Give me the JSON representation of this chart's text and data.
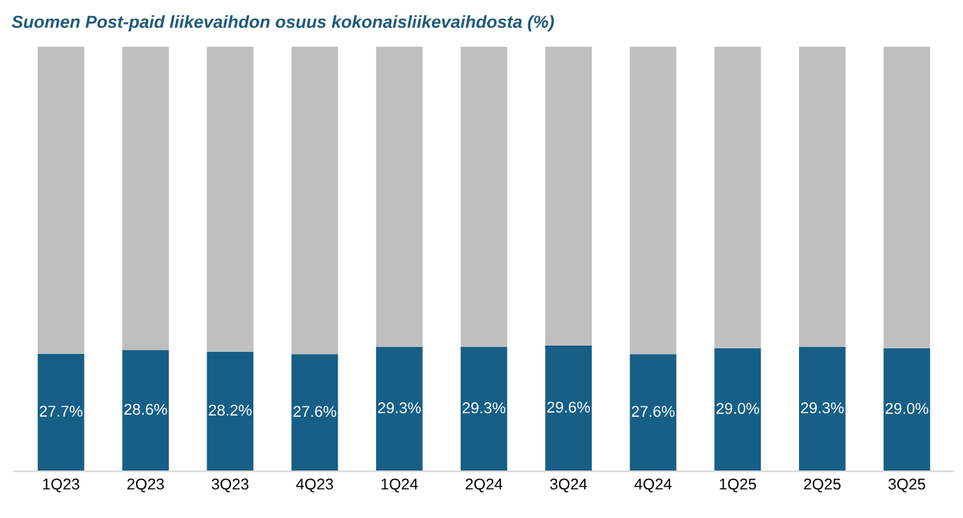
{
  "chart_data": {
    "type": "bar",
    "title": "Suomen Post-paid liikevaihdon osuus kokonaisliikevaihdosta (%)",
    "categories": [
      "1Q23",
      "2Q23",
      "3Q23",
      "4Q23",
      "1Q24",
      "2Q24",
      "3Q24",
      "4Q24",
      "1Q25",
      "2Q25",
      "3Q25"
    ],
    "stacked": true,
    "ylim": [
      0,
      100
    ],
    "tick_labels": "x",
    "grid": false,
    "legend": false,
    "series": [
      {
        "color": "#175f86",
        "values": [
          27.7,
          28.6,
          28.2,
          27.6,
          29.3,
          29.3,
          29.6,
          27.6,
          29.0,
          29.3,
          29.0
        ],
        "value_labels": [
          "27.7%",
          "28.6%",
          "28.2%",
          "27.6%",
          "29.3%",
          "29.3%",
          "29.6%",
          "27.6%",
          "29.0%",
          "29.3%",
          "29.0%"
        ]
      },
      {
        "color": "#bfbfbf",
        "values": [
          72.3,
          71.4,
          71.8,
          72.4,
          70.7,
          70.7,
          70.4,
          72.4,
          71.0,
          70.7,
          71.0
        ]
      }
    ]
  }
}
